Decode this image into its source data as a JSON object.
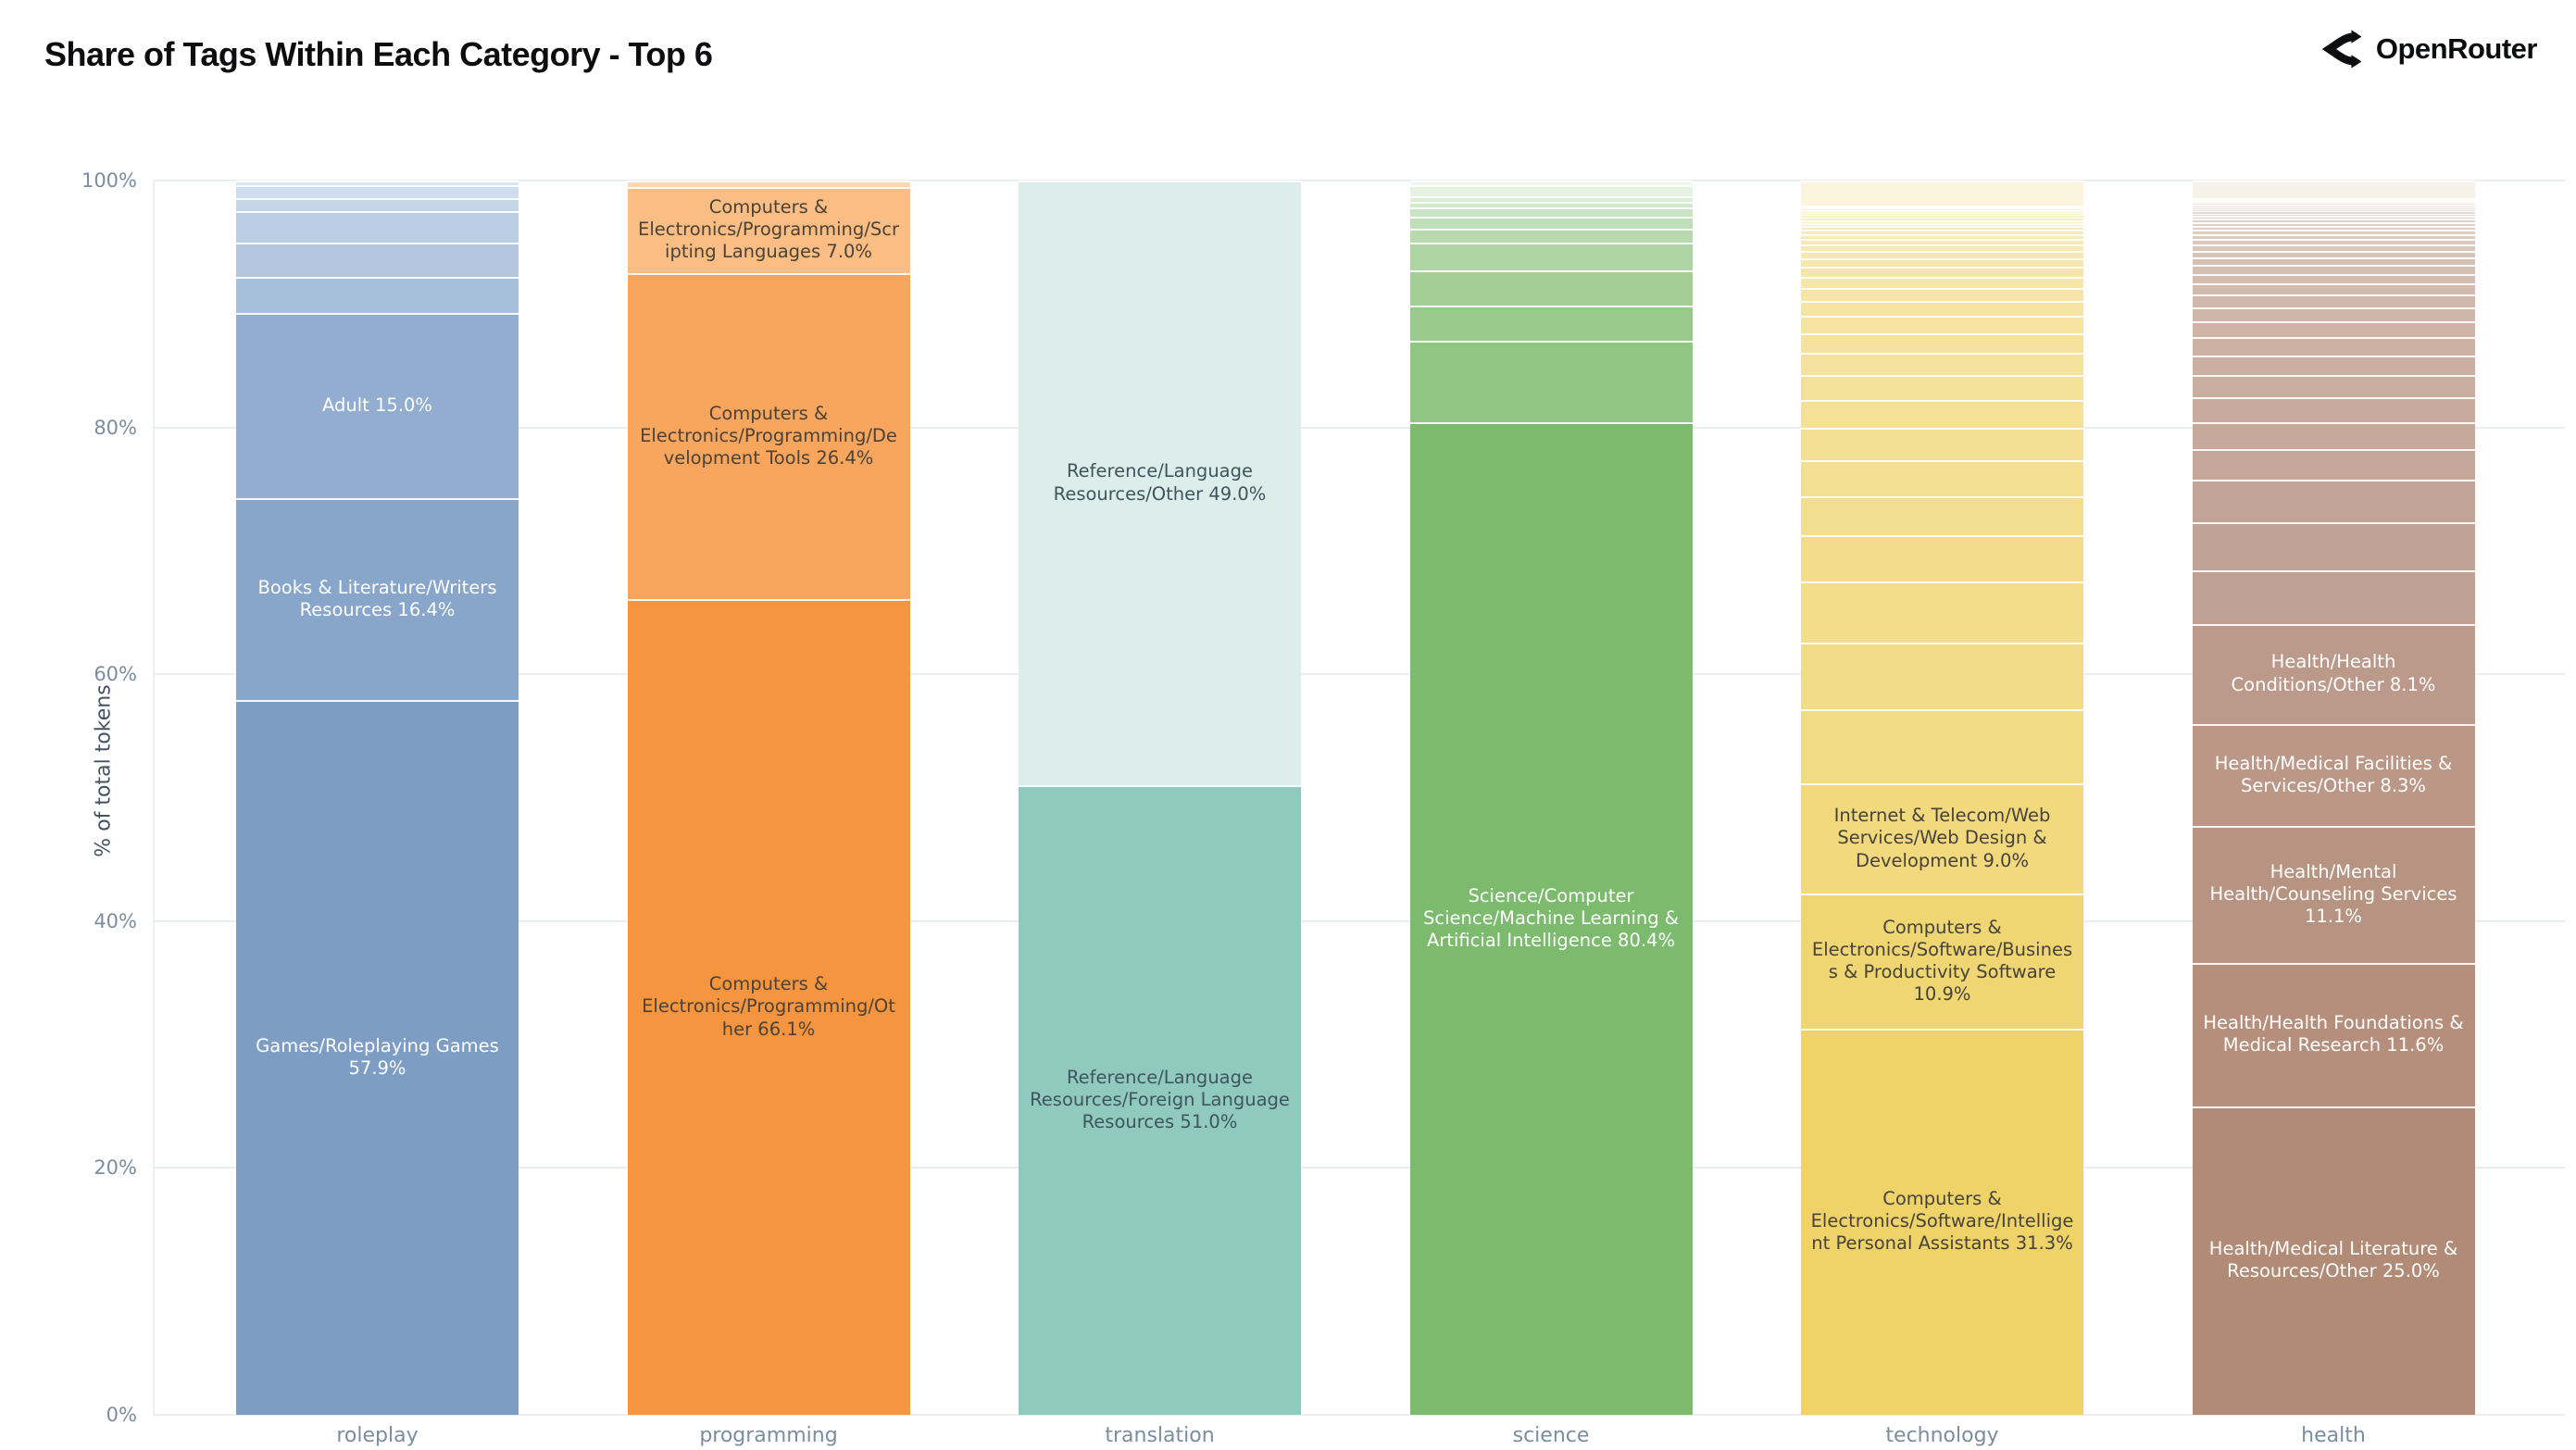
{
  "header": {
    "title": "Share of Tags Within Each Category - Top 6",
    "brand": "OpenRouter"
  },
  "chart_data": {
    "type": "bar",
    "subtype": "stacked-percent",
    "title": "Share of Tags Within Each Category - Top 6",
    "xlabel": "",
    "ylabel": "% of total tokens",
    "ylim": [
      0,
      100
    ],
    "yticks": [
      "0%",
      "20%",
      "40%",
      "60%",
      "80%",
      "100%"
    ],
    "grid": "horizontal",
    "legend": "none",
    "categories": [
      "roleplay",
      "programming",
      "translation",
      "science",
      "technology",
      "health"
    ],
    "bars": [
      {
        "category": "roleplay",
        "segments": [
          {
            "label": "Games/Roleplaying Games",
            "pct": 57.9,
            "color": "#7e9dc4",
            "text": "#ffffff"
          },
          {
            "label": "Books & Literature/Writers Resources",
            "pct": 16.4,
            "color": "#88a5ca",
            "text": "#ffffff"
          },
          {
            "label": "Adult",
            "pct": 15.0,
            "color": "#92adcf",
            "text": "#ffffff"
          }
        ],
        "unlabeled_segments": {
          "values": [
            2.9,
            2.8,
            2.5,
            1.1,
            1.0,
            0.4
          ],
          "color_from": "#9eb7d6",
          "color_to": "#d9e4f1"
        }
      },
      {
        "category": "programming",
        "segments": [
          {
            "label": "Computers & Electronics/Programming/Other",
            "pct": 66.1,
            "color": "#f6953f",
            "text": "#4c4236"
          },
          {
            "label": "Computers & Electronics/Programming/Development Tools",
            "pct": 26.4,
            "color": "#f8a55d",
            "text": "#4c4236"
          },
          {
            "label": "Computers & Electronics/Programming/Scripting Languages",
            "pct": 7.0,
            "color": "#fabd84",
            "text": "#4c4236"
          }
        ],
        "unlabeled_segments": {
          "values": [
            0.5
          ],
          "color_from": "#fdd8b0",
          "color_to": "#fdd8b0"
        }
      },
      {
        "category": "translation",
        "segments": [
          {
            "label": "Reference/Language Resources/Foreign Language Resources",
            "pct": 51.0,
            "color": "#90c9be",
            "text": "#3f555e"
          },
          {
            "label": "Reference/Language Resources/Other",
            "pct": 49.0,
            "color": "#dcedea",
            "text": "#3f555e"
          }
        ],
        "unlabeled_segments": {
          "values": [],
          "color_from": "#ffffff",
          "color_to": "#ffffff"
        }
      },
      {
        "category": "science",
        "segments": [
          {
            "label": "Science/Computer Science/Machine Learning & Artificial Intelligence",
            "pct": 80.4,
            "color": "#7cba6d",
            "text": "#ffffff"
          }
        ],
        "unlabeled_segments": {
          "values": [
            6.6,
            2.9,
            2.8,
            2.3,
            1.1,
            1.0,
            0.7,
            0.5,
            0.4,
            0.9,
            0.4
          ],
          "color_from": "#86c077",
          "color_to": "#f1f7ee"
        }
      },
      {
        "category": "technology",
        "segments": [
          {
            "label": "Computers & Electronics/Software/Intelligent Personal Assistants",
            "pct": 31.3,
            "color": "#efd369",
            "text": "#45433c"
          },
          {
            "label": "Computers & Electronics/Software/Business & Productivity Software",
            "pct": 10.9,
            "color": "#f0d673",
            "text": "#45433c"
          },
          {
            "label": "Internet & Telecom/Web Services/Web Design & Development",
            "pct": 9.0,
            "color": "#f2d97d",
            "text": "#45433c"
          }
        ],
        "unlabeled_segments": {
          "values": [
            6.0,
            5.4,
            4.9,
            3.75,
            3.2,
            2.9,
            2.6,
            2.3,
            2.0,
            1.8,
            1.6,
            1.4,
            1.2,
            1.05,
            0.9,
            0.8,
            0.7,
            0.6,
            0.5,
            0.45,
            0.4,
            0.35,
            0.3,
            0.27,
            0.24,
            0.21,
            0.18,
            0.16,
            0.14,
            0.12,
            0.11,
            0.1,
            0.09,
            0.08,
            2.0
          ],
          "color_from": "#f2da82",
          "color_to": "#fbf5dd"
        }
      },
      {
        "category": "health",
        "segments": [
          {
            "label": "Health/Medical Literature & Resources/Other",
            "pct": 25.0,
            "color": "#b28b76",
            "text": "#ffffff"
          },
          {
            "label": "Health/Health Foundations & Medical Research",
            "pct": 11.6,
            "color": "#b58f7c",
            "text": "#ffffff"
          },
          {
            "label": "Health/Mental Health/Counseling Services",
            "pct": 11.1,
            "color": "#b79381",
            "text": "#ffffff"
          },
          {
            "label": "Health/Medical Facilities & Services/Other",
            "pct": 8.3,
            "color": "#ba9787",
            "text": "#ffffff"
          },
          {
            "label": "Health/Health Conditions/Other",
            "pct": 8.1,
            "color": "#bc9a8b",
            "text": "#ffffff"
          }
        ],
        "unlabeled_segments": {
          "values": [
            4.3,
            3.9,
            3.5,
            2.45,
            2.2,
            2.0,
            1.8,
            1.6,
            1.45,
            1.3,
            1.15,
            1.0,
            0.9,
            0.8,
            0.7,
            0.62,
            0.55,
            0.5,
            0.45,
            0.4,
            0.36,
            0.32,
            0.29,
            0.26,
            0.23,
            0.2,
            0.18,
            0.16,
            0.14,
            0.13,
            0.12,
            0.11,
            0.1,
            0.09,
            0.08,
            0.08,
            0.07,
            1.4
          ],
          "color_from": "#bf9e90",
          "color_to": "#f6f1e9"
        }
      }
    ]
  }
}
